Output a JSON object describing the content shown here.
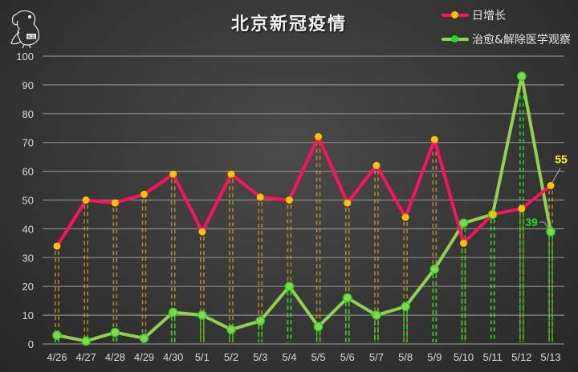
{
  "chart_data": {
    "type": "line",
    "title": "北京新冠疫情",
    "xlabel": "",
    "ylabel": "",
    "ylim": [
      0,
      100
    ],
    "yticks": [
      0,
      10,
      20,
      30,
      40,
      50,
      60,
      70,
      80,
      90,
      100
    ],
    "grid": true,
    "legend_position": "top-right",
    "categories": [
      "4/26",
      "4/27",
      "4/28",
      "4/29",
      "4/30",
      "5/1",
      "5/2",
      "5/3",
      "5/4",
      "5/5",
      "5/6",
      "5/7",
      "5/8",
      "5/9",
      "5/10",
      "5/11",
      "5/12",
      "5/13"
    ],
    "series": [
      {
        "name": "日增长",
        "line_color": "#ff1060",
        "marker_color": "#ffc000",
        "values": [
          34,
          50,
          49,
          52,
          59,
          39,
          59,
          51,
          50,
          72,
          49,
          62,
          44,
          71,
          35,
          45,
          47,
          55
        ]
      },
      {
        "name": "治愈&解除医学观察",
        "line_color": "#92d050",
        "marker_color": "#22dd22",
        "values": [
          3,
          1,
          4,
          2,
          11,
          10,
          5,
          8,
          20,
          6,
          16,
          10,
          13,
          26,
          42,
          45,
          93,
          39
        ]
      }
    ],
    "annotations": [
      {
        "text": "55",
        "series": "日增长",
        "category": "5/13",
        "color": "#ffff00"
      },
      {
        "text": "39",
        "series": "治愈&解除医学观察",
        "category": "5/13",
        "color": "#22dd22"
      }
    ]
  },
  "legend": {
    "items": [
      {
        "label": "日增长"
      },
      {
        "label": "治愈&解除医学观察"
      }
    ]
  },
  "logo": {
    "badge_text": "玖磊"
  }
}
